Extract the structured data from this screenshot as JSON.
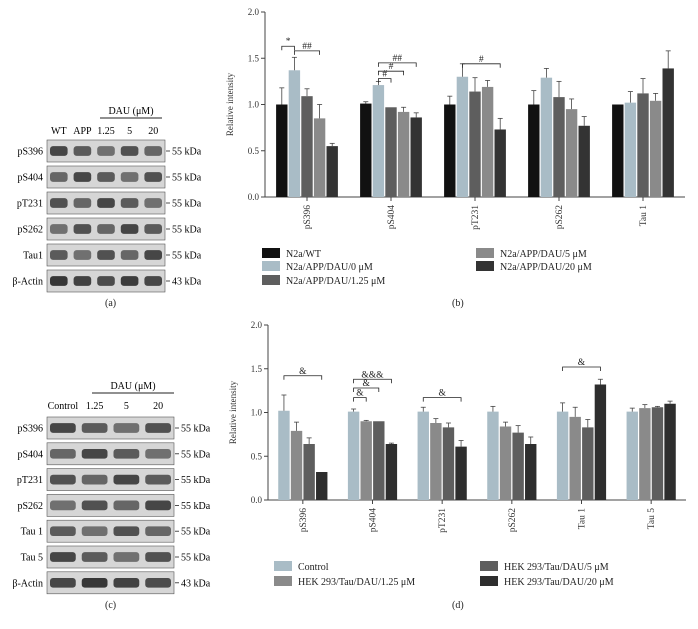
{
  "panels": {
    "a": {
      "label": "(a)",
      "dau_label": "DAU (μM)",
      "lanes": [
        "WT",
        "APP",
        "1.25",
        "5",
        "20"
      ],
      "rows": [
        {
          "name": "pS396",
          "kda": "55 kDa"
        },
        {
          "name": "pS404",
          "kda": "55 kDa"
        },
        {
          "name": "pT231",
          "kda": "55 kDa"
        },
        {
          "name": "pS262",
          "kda": "55 kDa"
        },
        {
          "name": "Tau1",
          "kda": "55 kDa"
        },
        {
          "name": "β-Actin",
          "kda": "43 kDa"
        }
      ]
    },
    "c": {
      "label": "(c)",
      "dau_label": "DAU (μM)",
      "lanes": [
        "Control",
        "1.25",
        "5",
        "20"
      ],
      "rows": [
        {
          "name": "pS396",
          "kda": "55 kDa"
        },
        {
          "name": "pS404",
          "kda": "55 kDa"
        },
        {
          "name": "pT231",
          "kda": "55 kDa"
        },
        {
          "name": "pS262",
          "kda": "55 kDa"
        },
        {
          "name": "Tau 1",
          "kda": "55 kDa"
        },
        {
          "name": "Tau 5",
          "kda": "55 kDa"
        },
        {
          "name": "β-Actin",
          "kda": "43 kDa"
        }
      ]
    },
    "b_label": "(b)",
    "d_label": "(d)"
  },
  "chart_data": [
    {
      "type": "bar",
      "panel": "b",
      "ylabel": "Relative intensity",
      "ylim": [
        0,
        2.0
      ],
      "yticks": [
        "0.0",
        "0.5",
        "1.0",
        "1.5",
        "2.0"
      ],
      "categories": [
        "pS396",
        "pS404",
        "pT231",
        "pS262",
        "Tau 1"
      ],
      "series": [
        {
          "name": "N2a/WT",
          "color": "#111111",
          "values": [
            1.0,
            1.01,
            1.0,
            1.0,
            1.0
          ],
          "errors": [
            0.18,
            0.02,
            0.09,
            0.15,
            0.0
          ]
        },
        {
          "name": "N2a/APP/DAU/0 μM",
          "color": "#a9bcc6",
          "values": [
            1.37,
            1.21,
            1.3,
            1.29,
            1.02
          ],
          "errors": [
            0.14,
            0.04,
            0.14,
            0.1,
            0.12
          ]
        },
        {
          "name": "N2a/APP/DAU/1.25 μM",
          "color": "#5e5e5e",
          "values": [
            1.09,
            0.97,
            1.14,
            1.08,
            1.12
          ],
          "errors": [
            0.08,
            0.0,
            0.15,
            0.17,
            0.16
          ]
        },
        {
          "name": "N2a/APP/DAU/5 μM",
          "color": "#8a8a8a",
          "values": [
            0.85,
            0.92,
            1.19,
            0.95,
            1.04
          ],
          "errors": [
            0.15,
            0.05,
            0.07,
            0.11,
            0.08
          ]
        },
        {
          "name": "N2a/APP/DAU/20 μM",
          "color": "#333333",
          "values": [
            0.55,
            0.86,
            0.73,
            0.77,
            1.39
          ],
          "errors": [
            0.03,
            0.05,
            0.12,
            0.1,
            0.19
          ]
        }
      ],
      "significance": [
        {
          "label": "*",
          "cat": 0,
          "from": 0,
          "to": 1,
          "y": 1.63
        },
        {
          "label": "##",
          "cat": 0,
          "from": 1,
          "to": 3,
          "y": 1.58
        },
        {
          "label": "##",
          "cat": 1,
          "from": 1,
          "to": 4,
          "y": 1.45
        },
        {
          "label": "#",
          "cat": 1,
          "from": 1,
          "to": 3,
          "y": 1.36
        },
        {
          "label": "#",
          "cat": 1,
          "from": 1,
          "to": 2,
          "y": 1.28
        },
        {
          "label": "#",
          "cat": 2,
          "from": 1,
          "to": 4,
          "y": 1.44
        }
      ]
    },
    {
      "type": "bar",
      "panel": "d",
      "ylabel": "Relative intensity",
      "ylim": [
        0,
        2.0
      ],
      "yticks": [
        "0.0",
        "0.5",
        "1.0",
        "1.5",
        "2.0"
      ],
      "categories": [
        "pS396",
        "pS404",
        "pT231",
        "pS262",
        "Tau 1",
        "Tau 5"
      ],
      "series": [
        {
          "name": "Control",
          "color": "#a9bcc6",
          "values": [
            1.02,
            1.01,
            1.01,
            1.01,
            1.01,
            1.01
          ],
          "errors": [
            0.18,
            0.03,
            0.05,
            0.06,
            0.1,
            0.04
          ]
        },
        {
          "name": "HEK 293/Tau/DAU/1.25 μM",
          "color": "#8a8a8a",
          "values": [
            0.79,
            0.9,
            0.88,
            0.84,
            0.95,
            1.05
          ],
          "errors": [
            0.1,
            0.01,
            0.05,
            0.05,
            0.11,
            0.04
          ]
        },
        {
          "name": "HEK 293/Tau/DAU/5 μM",
          "color": "#5e5e5e",
          "values": [
            0.64,
            0.9,
            0.83,
            0.77,
            0.83,
            1.06
          ],
          "errors": [
            0.07,
            0.0,
            0.05,
            0.08,
            0.09,
            0.01
          ]
        },
        {
          "name": "HEK 293/Tau/DAU/20 μM",
          "color": "#2e2e2e",
          "values": [
            0.32,
            0.64,
            0.61,
            0.64,
            1.32,
            1.1
          ],
          "errors": [
            0.0,
            0.01,
            0.07,
            0.08,
            0.06,
            0.03
          ]
        }
      ],
      "significance": [
        {
          "label": "&",
          "cat": 0,
          "from": 0,
          "to": 3,
          "y": 1.42
        },
        {
          "label": "&&&",
          "cat": 1,
          "from": 0,
          "to": 3,
          "y": 1.38
        },
        {
          "label": "&",
          "cat": 1,
          "from": 0,
          "to": 2,
          "y": 1.28
        },
        {
          "label": "&",
          "cat": 1,
          "from": 0,
          "to": 1,
          "y": 1.17
        },
        {
          "label": "&",
          "cat": 2,
          "from": 0,
          "to": 3,
          "y": 1.17
        },
        {
          "label": "&",
          "cat": 4,
          "from": 0,
          "to": 3,
          "y": 1.52
        }
      ]
    }
  ]
}
